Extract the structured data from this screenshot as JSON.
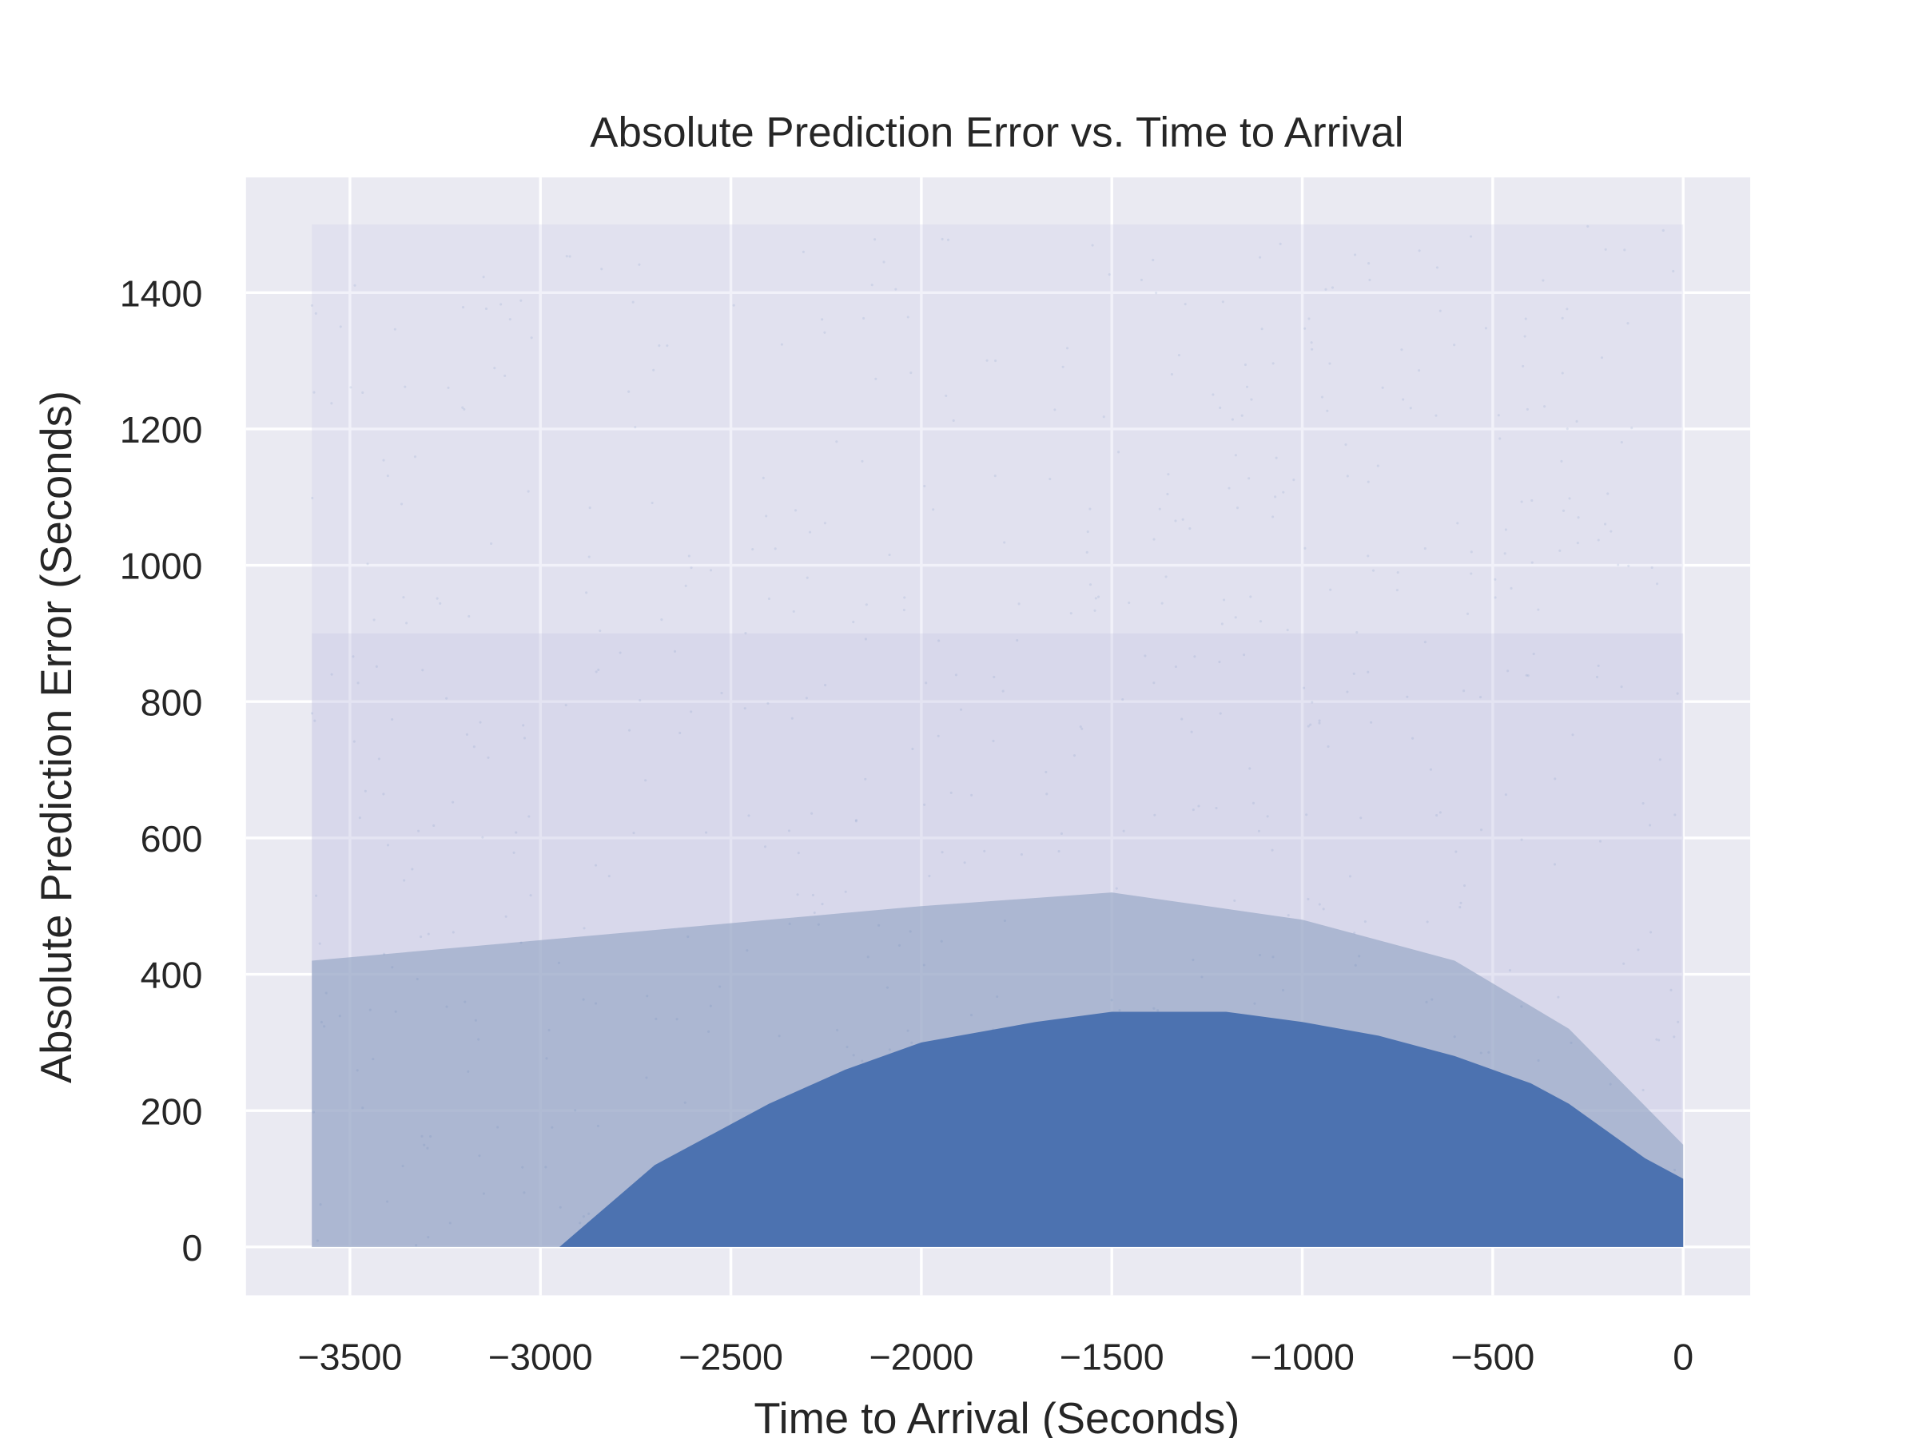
{
  "chart_data": {
    "type": "scatter",
    "title": "Absolute Prediction Error vs. Time to Arrival",
    "xlabel": "Time to Arrival (Seconds)",
    "ylabel": "Absolute Prediction Error (Seconds)",
    "xlim": [
      -3773,
      176
    ],
    "ylim": [
      -71,
      1569
    ],
    "xticks": [
      -3500,
      -3000,
      -2500,
      -2000,
      -1500,
      -1000,
      -500,
      0
    ],
    "xtick_labels": [
      "−3500",
      "−3000",
      "−2500",
      "−2000",
      "−1500",
      "−1000",
      "−500",
      "0"
    ],
    "yticks": [
      0,
      200,
      400,
      600,
      800,
      1000,
      1200,
      1400
    ],
    "ytick_labels": [
      "0",
      "200",
      "400",
      "600",
      "800",
      "1000",
      "1200",
      "1400"
    ],
    "grid": true,
    "point_color": "#4c72b0",
    "background_color": "#eaeaf2",
    "x_data_range": [
      -3600,
      0
    ],
    "dense_region_upper_envelope": {
      "x": [
        -2950,
        -2700,
        -2400,
        -2200,
        -2000,
        -1700,
        -1500,
        -1200,
        -1000,
        -800,
        -600,
        -400,
        -300,
        -200,
        -100,
        0
      ],
      "y": [
        0,
        120,
        210,
        260,
        300,
        330,
        345,
        345,
        330,
        310,
        280,
        240,
        210,
        170,
        130,
        100
      ]
    },
    "moderate_region_upper_envelope": {
      "x": [
        -3600,
        -3200,
        -2800,
        -2400,
        -2000,
        -1500,
        -1000,
        -600,
        -300,
        0
      ],
      "y": [
        420,
        440,
        460,
        480,
        500,
        520,
        480,
        420,
        320,
        150
      ]
    },
    "sparse_region_max_y": 1500
  }
}
